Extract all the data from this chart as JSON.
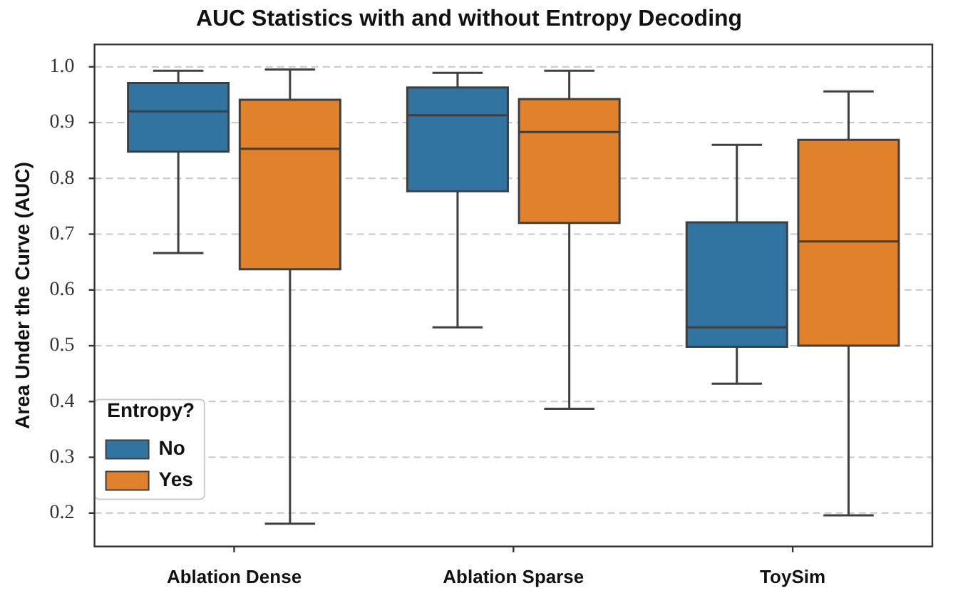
{
  "chart_data": {
    "type": "box",
    "title": "AUC Statistics with and without Entropy Decoding",
    "ylabel": "Area Under the Curve (AUC)",
    "legend_title": "Entropy?",
    "categories": [
      "Ablation Dense",
      "Ablation Sparse",
      "ToySim"
    ],
    "series": [
      {
        "name": "No",
        "color": "#3274a1",
        "boxes": [
          {
            "low": 0.666,
            "q1": 0.848,
            "median": 0.92,
            "q3": 0.971,
            "high": 0.993
          },
          {
            "low": 0.533,
            "q1": 0.777,
            "median": 0.913,
            "q3": 0.963,
            "high": 0.989
          },
          {
            "low": 0.432,
            "q1": 0.498,
            "median": 0.533,
            "q3": 0.721,
            "high": 0.86
          }
        ]
      },
      {
        "name": "Yes",
        "color": "#e1812c",
        "boxes": [
          {
            "low": 0.181,
            "q1": 0.637,
            "median": 0.853,
            "q3": 0.941,
            "high": 0.995
          },
          {
            "low": 0.387,
            "q1": 0.72,
            "median": 0.883,
            "q3": 0.942,
            "high": 0.993
          },
          {
            "low": 0.196,
            "q1": 0.5,
            "median": 0.687,
            "q3": 0.869,
            "high": 0.956
          }
        ]
      }
    ],
    "ylim": [
      0.14,
      1.04
    ],
    "yticks": [
      {
        "value": 0.2,
        "label": "0.2"
      },
      {
        "value": 0.3,
        "label": "0.3"
      },
      {
        "value": 0.4,
        "label": "0.4"
      },
      {
        "value": 0.5,
        "label": "0.5"
      },
      {
        "value": 0.6,
        "label": "0.6"
      },
      {
        "value": 0.7,
        "label": "0.7"
      },
      {
        "value": 0.8,
        "label": "0.8"
      },
      {
        "value": 0.9,
        "label": "0.9"
      },
      {
        "value": 1.0,
        "label": "1.0"
      }
    ],
    "grid": "y",
    "legend": "bottom left"
  }
}
